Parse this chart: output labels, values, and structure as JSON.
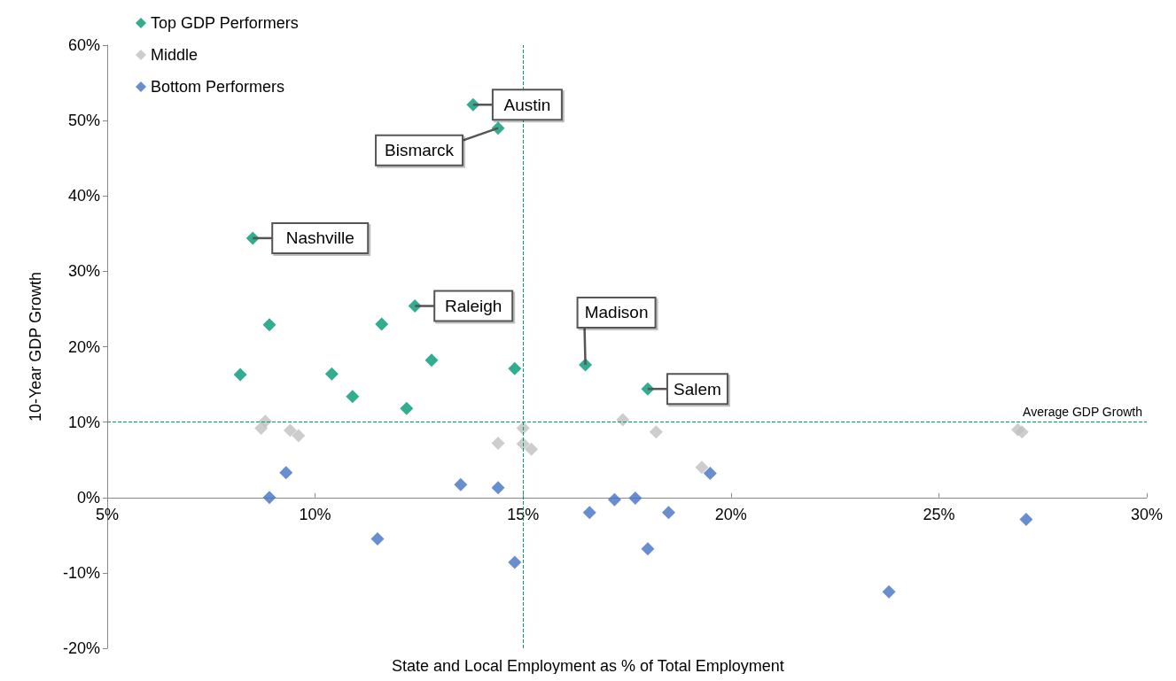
{
  "chart_data": {
    "type": "scatter",
    "xlabel": "State and Local Employment as % of Total Employment",
    "ylabel": "10-Year GDP Growth",
    "xlim": [
      5,
      30
    ],
    "xticks": [
      {
        "value": 5,
        "label": "5%"
      },
      {
        "value": 10,
        "label": "10%"
      },
      {
        "value": 15,
        "label": "15%"
      },
      {
        "value": 20,
        "label": "20%"
      },
      {
        "value": 25,
        "label": "25%"
      },
      {
        "value": 30,
        "label": "30%"
      }
    ],
    "ylim": [
      -20,
      60
    ],
    "yticks": [
      {
        "value": -20,
        "label": "-20%"
      },
      {
        "value": -10,
        "label": "-10%"
      },
      {
        "value": 0,
        "label": "0%"
      },
      {
        "value": 10,
        "label": "10%"
      },
      {
        "value": 20,
        "label": "20%"
      },
      {
        "value": 30,
        "label": "30%"
      },
      {
        "value": 40,
        "label": "40%"
      },
      {
        "value": 50,
        "label": "50%"
      },
      {
        "value": 60,
        "label": "60%"
      }
    ],
    "grid": false,
    "legend": "top left",
    "marker": "diamond",
    "series": [
      {
        "name": "Top GDP Performers",
        "color": "#009973",
        "x": [
          8.2,
          8.9,
          10.4,
          10.9,
          11.6,
          12.2,
          12.4,
          12.8,
          13.8,
          14.4,
          14.8,
          8.5,
          16.5,
          18.0
        ],
        "values": [
          16.3,
          22.9,
          16.4,
          13.4,
          23.0,
          11.8,
          25.4,
          18.2,
          52.1,
          49.0,
          17.1,
          34.4,
          17.6,
          14.4
        ]
      },
      {
        "name": "Middle",
        "color": "#c0c0c0",
        "x": [
          8.7,
          8.8,
          9.4,
          9.6,
          14.4,
          15.0,
          15.0,
          15.2,
          17.4,
          18.2,
          19.3,
          26.9,
          27.0
        ],
        "values": [
          9.2,
          10.1,
          8.9,
          8.2,
          7.2,
          9.2,
          7.1,
          6.4,
          10.3,
          8.7,
          4.0,
          9.0,
          8.7
        ]
      },
      {
        "name": "Bottom Performers",
        "color": "#4472c4",
        "x": [
          8.9,
          9.3,
          11.5,
          13.5,
          14.4,
          14.8,
          16.6,
          17.2,
          17.7,
          18.0,
          18.5,
          19.5,
          23.8,
          27.1
        ],
        "values": [
          0,
          3.3,
          -5.5,
          1.7,
          1.3,
          -8.6,
          -2.0,
          -0.3,
          -0.1,
          -6.8,
          -2.0,
          3.2,
          -12.5,
          -2.9
        ]
      }
    ],
    "ref_lines": [
      {
        "axis": "x",
        "value": 15,
        "color": "#009973",
        "line_style": "dashed"
      },
      {
        "axis": "y",
        "value": 10,
        "label": "Average GDP Growth",
        "color": "#009973",
        "line_style": "dashed"
      }
    ],
    "annotations": [
      {
        "text": "Austin",
        "x": 13.8,
        "y": 52.1
      },
      {
        "text": "Bismarck",
        "x": 14.4,
        "y": 49.0
      },
      {
        "text": "Nashville",
        "x": 8.5,
        "y": 34.4
      },
      {
        "text": "Raleigh",
        "x": 12.4,
        "y": 25.4
      },
      {
        "text": "Madison",
        "x": 16.5,
        "y": 17.6
      },
      {
        "text": "Salem",
        "x": 18.0,
        "y": 14.4
      }
    ]
  }
}
